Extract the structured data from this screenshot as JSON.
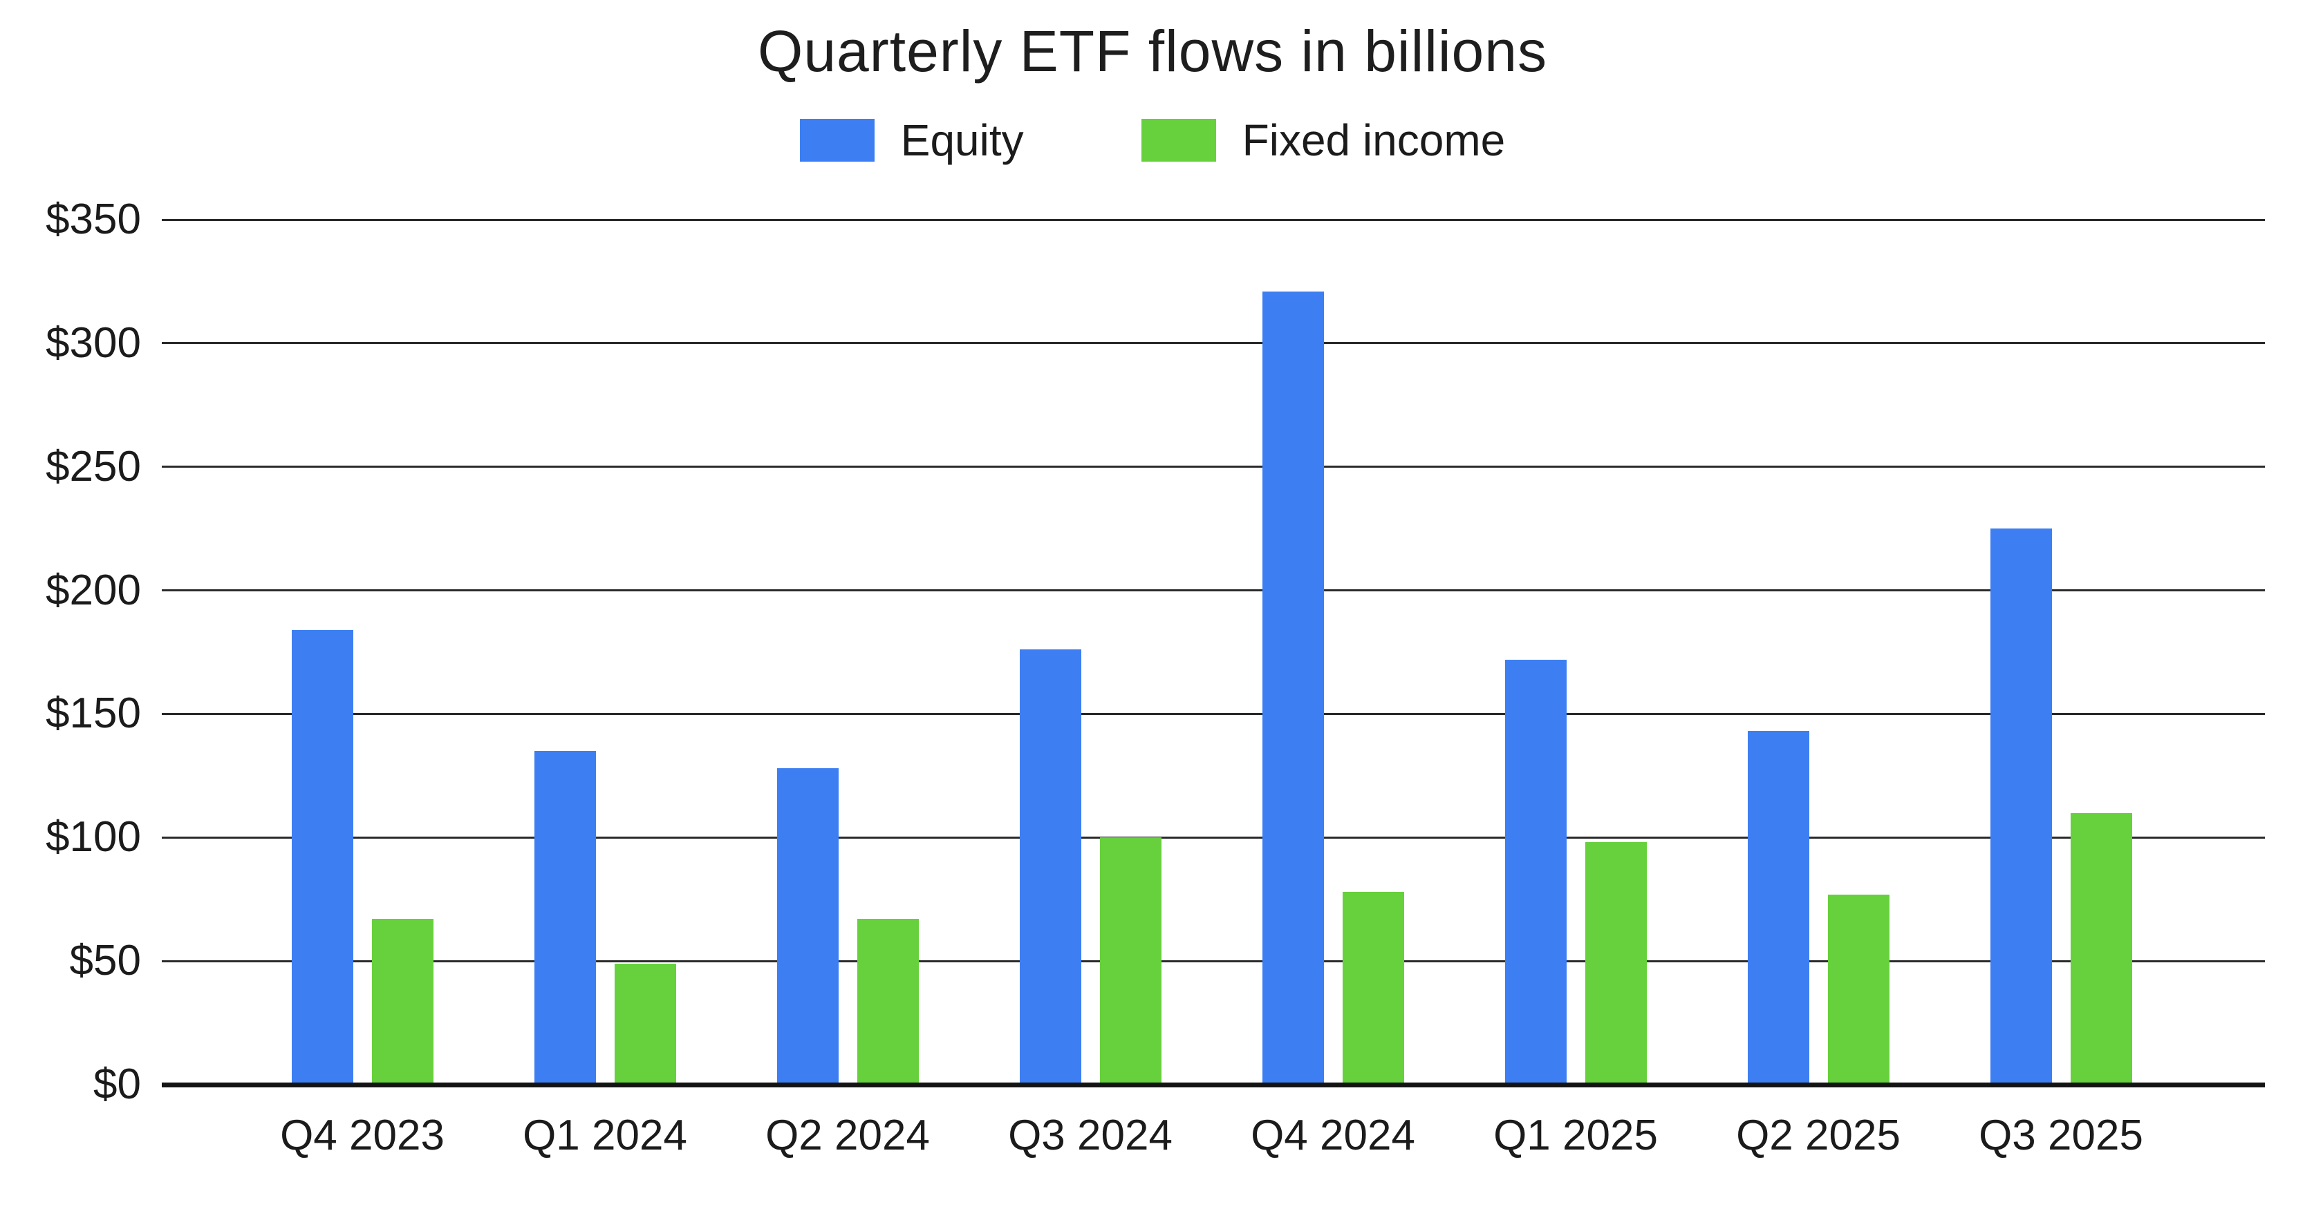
{
  "chart_data": {
    "type": "bar",
    "title": "Quarterly ETF flows in billions",
    "categories": [
      "Q4 2023",
      "Q1 2024",
      "Q2 2024",
      "Q3 2024",
      "Q4 2024",
      "Q1 2025",
      "Q2 2025",
      "Q3 2025"
    ],
    "series": [
      {
        "name": "Equity",
        "color": "#3d7ff2",
        "values": [
          184,
          135,
          128,
          176,
          321,
          172,
          143,
          225
        ]
      },
      {
        "name": "Fixed income",
        "color": "#66d13c",
        "values": [
          67,
          49,
          67,
          100,
          78,
          98,
          77,
          110
        ]
      }
    ],
    "ylim": [
      0,
      350
    ],
    "ytick_step": 50,
    "ytick_labels": [
      "$0",
      "$50",
      "$100",
      "$150",
      "$200",
      "$250",
      "$300",
      "$350"
    ],
    "grid": "horizontal",
    "legend_position": "top",
    "colors": {
      "grid": "#2a2a2a",
      "axis": "#141414",
      "text": "#1b1b1b"
    }
  }
}
